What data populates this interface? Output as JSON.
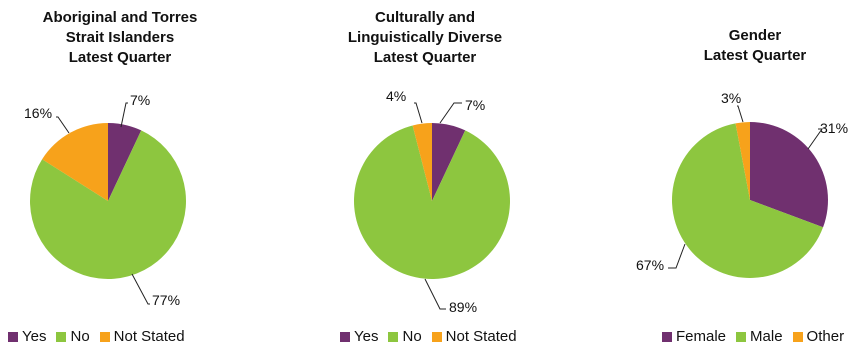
{
  "colors": {
    "purple": "#70306f",
    "green": "#8dc63f",
    "orange": "#f7a21b"
  },
  "chart_data": [
    {
      "type": "pie",
      "title_lines": [
        "Aboriginal and Torres",
        "Strait Islanders",
        "Latest Quarter"
      ],
      "slices": [
        {
          "label": "Yes",
          "value": 7,
          "display": "7%",
          "color": "#70306f"
        },
        {
          "label": "No",
          "value": 77,
          "display": "77%",
          "color": "#8dc63f"
        },
        {
          "label": "Not Stated",
          "value": 16,
          "display": "16%",
          "color": "#f7a21b"
        }
      ],
      "legend": [
        "Yes",
        "No",
        "Not Stated"
      ]
    },
    {
      "type": "pie",
      "title_lines": [
        "Culturally and",
        "Linguistically Diverse",
        "Latest Quarter"
      ],
      "slices": [
        {
          "label": "Yes",
          "value": 7,
          "display": "7%",
          "color": "#70306f"
        },
        {
          "label": "No",
          "value": 89,
          "display": "89%",
          "color": "#8dc63f"
        },
        {
          "label": "Not Stated",
          "value": 4,
          "display": "4%",
          "color": "#f7a21b"
        }
      ],
      "legend": [
        "Yes",
        "No",
        "Not Stated"
      ]
    },
    {
      "type": "pie",
      "title_lines": [
        "Gender",
        "Latest Quarter"
      ],
      "slices": [
        {
          "label": "Female",
          "value": 31,
          "display": "31%",
          "color": "#70306f"
        },
        {
          "label": "Male",
          "value": 67,
          "display": "67%",
          "color": "#8dc63f"
        },
        {
          "label": "Other",
          "value": 3,
          "display": "3%",
          "color": "#f7a21b"
        }
      ],
      "legend": [
        "Female",
        "Male",
        "Other"
      ]
    }
  ]
}
